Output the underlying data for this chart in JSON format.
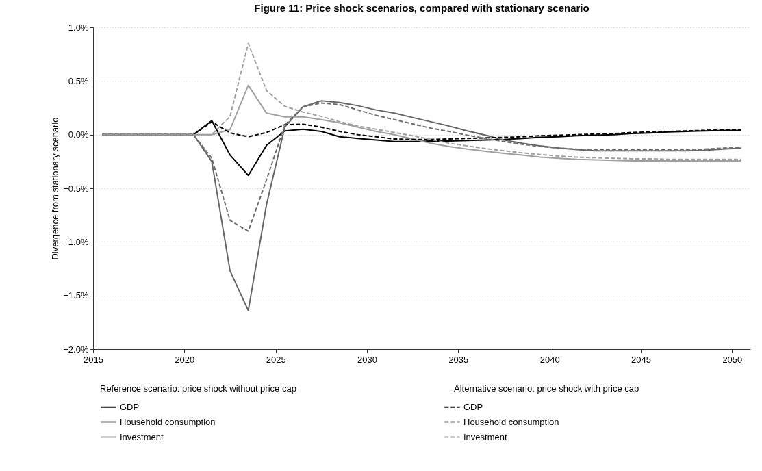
{
  "chart_data": {
    "type": "line",
    "title": "Figure 11: Price shock scenarios, compared with stationary scenario",
    "ylabel": "Divergence from stationary scenario",
    "annotations": [
      "Reference scenario: price shock without price cap",
      "Alternative scenario: price shock with price cap"
    ],
    "x": [
      2015.5,
      2016.5,
      2017.5,
      2018.5,
      2019.5,
      2020.5,
      2021.5,
      2022.5,
      2023.5,
      2024.5,
      2025.5,
      2026.5,
      2027.5,
      2028.5,
      2029.5,
      2030.5,
      2031.5,
      2032.5,
      2033.5,
      2034.5,
      2035.5,
      2036.5,
      2037.5,
      2038.5,
      2039.5,
      2040.5,
      2041.5,
      2042.5,
      2043.5,
      2044.5,
      2045.5,
      2046.5,
      2047.5,
      2048.5,
      2049.5,
      2050.5
    ],
    "xlim": [
      2015,
      2051
    ],
    "xticks": [
      2015,
      2020,
      2025,
      2030,
      2035,
      2040,
      2045,
      2050
    ],
    "ylim": [
      -2,
      1
    ],
    "yticks": [
      {
        "value": -2,
        "label": "−2.0%"
      },
      {
        "value": -1.5,
        "label": "−1.5%"
      },
      {
        "value": -1,
        "label": "−1.0%"
      },
      {
        "value": -0.5,
        "label": "−0.5%"
      },
      {
        "value": 0,
        "label": "0.0%"
      },
      {
        "value": 0.5,
        "label": "0.5%"
      },
      {
        "value": 1,
        "label": "1.0%"
      }
    ],
    "grid": "y",
    "legend": "bottom",
    "series": [
      {
        "name": "GDP",
        "color": "#000000",
        "line_style": "solid",
        "values": [
          0,
          0,
          0,
          0,
          0,
          0,
          0.13,
          -0.19,
          -0.38,
          -0.1,
          0.035,
          0.05,
          0.03,
          -0.02,
          -0.035,
          -0.05,
          -0.065,
          -0.065,
          -0.06,
          -0.06,
          -0.055,
          -0.05,
          -0.045,
          -0.035,
          -0.025,
          -0.02,
          -0.01,
          -0.005,
          0,
          0.01,
          0.015,
          0.025,
          0.03,
          0.035,
          0.04,
          0.04
        ]
      },
      {
        "name": "Household consumption",
        "color": "#666666",
        "line_style": "solid",
        "values": [
          0,
          0,
          0,
          0,
          0,
          0,
          -0.25,
          -1.27,
          -1.64,
          -0.65,
          0.07,
          0.26,
          0.315,
          0.3,
          0.27,
          0.23,
          0.2,
          0.16,
          0.12,
          0.08,
          0.035,
          -0.005,
          -0.05,
          -0.08,
          -0.105,
          -0.125,
          -0.14,
          -0.15,
          -0.15,
          -0.15,
          -0.15,
          -0.15,
          -0.15,
          -0.145,
          -0.135,
          -0.125
        ]
      },
      {
        "name": "Investment",
        "color": "#a0a0a0",
        "line_style": "solid",
        "values": [
          0,
          0,
          0,
          0,
          0,
          0,
          0,
          0.047,
          0.46,
          0.2,
          0.165,
          0.165,
          0.14,
          0.11,
          0.07,
          0.03,
          0,
          -0.04,
          -0.08,
          -0.11,
          -0.135,
          -0.155,
          -0.175,
          -0.19,
          -0.21,
          -0.22,
          -0.23,
          -0.235,
          -0.24,
          -0.245,
          -0.245,
          -0.245,
          -0.245,
          -0.245,
          -0.245,
          -0.245
        ]
      },
      {
        "name": "GDP",
        "color": "#000000",
        "line_style": "dashed",
        "values": [
          0,
          0,
          0,
          0,
          0,
          0,
          0.12,
          0.016,
          -0.02,
          0.02,
          0.093,
          0.097,
          0.07,
          0.03,
          0,
          -0.02,
          -0.04,
          -0.045,
          -0.045,
          -0.04,
          -0.035,
          -0.03,
          -0.025,
          -0.02,
          -0.01,
          -0.005,
          0,
          0.005,
          0.01,
          0.02,
          0.025,
          0.03,
          0.035,
          0.04,
          0.045,
          0.045
        ]
      },
      {
        "name": "Household consumption",
        "color": "#6e6e6e",
        "line_style": "dashed",
        "values": [
          0,
          0,
          0,
          0,
          0,
          0,
          -0.22,
          -0.8,
          -0.9,
          -0.42,
          0.09,
          0.26,
          0.295,
          0.28,
          0.23,
          0.18,
          0.14,
          0.1,
          0.06,
          0.03,
          -0.005,
          -0.035,
          -0.065,
          -0.09,
          -0.11,
          -0.125,
          -0.135,
          -0.14,
          -0.14,
          -0.14,
          -0.14,
          -0.14,
          -0.14,
          -0.135,
          -0.125,
          -0.12
        ]
      },
      {
        "name": "Investment",
        "color": "#a0a0a0",
        "line_style": "dashed",
        "values": [
          0,
          0,
          0,
          0,
          0,
          0,
          0,
          0.17,
          0.85,
          0.41,
          0.264,
          0.21,
          0.17,
          0.12,
          0.08,
          0.05,
          0.02,
          -0.01,
          -0.045,
          -0.08,
          -0.105,
          -0.13,
          -0.15,
          -0.17,
          -0.185,
          -0.2,
          -0.21,
          -0.215,
          -0.22,
          -0.225,
          -0.225,
          -0.23,
          -0.23,
          -0.23,
          -0.23,
          -0.23
        ]
      }
    ]
  }
}
